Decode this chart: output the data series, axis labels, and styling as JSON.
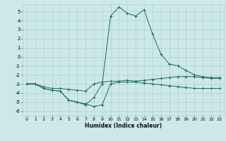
{
  "xlabel": "Humidex (Indice chaleur)",
  "bg_color": "#cce8e8",
  "grid_color": "#aacccc",
  "line_color": "#1a6b5a",
  "xlim": [
    -0.5,
    23.5
  ],
  "ylim": [
    -6.5,
    5.8
  ],
  "xticks": [
    0,
    1,
    2,
    3,
    4,
    5,
    6,
    7,
    8,
    9,
    10,
    11,
    12,
    13,
    14,
    15,
    16,
    17,
    18,
    19,
    20,
    21,
    22,
    23
  ],
  "yticks": [
    -6,
    -5,
    -4,
    -3,
    -2,
    -1,
    0,
    1,
    2,
    3,
    4,
    5
  ],
  "lines": [
    {
      "x": [
        0,
        1,
        2,
        3,
        4,
        5,
        6,
        7,
        8,
        9,
        10,
        11,
        12,
        13,
        14,
        15,
        16,
        17,
        18,
        19,
        20,
        21,
        22,
        23
      ],
      "y": [
        -3.0,
        -3.0,
        -3.3,
        -3.5,
        -3.5,
        -3.6,
        -3.7,
        -3.8,
        -3.0,
        -2.8,
        -2.7,
        -2.7,
        -2.6,
        -2.7,
        -2.6,
        -2.5,
        -2.4,
        -2.3,
        -2.2,
        -2.2,
        -2.2,
        -2.3,
        -2.4,
        -2.4
      ]
    },
    {
      "x": [
        0,
        1,
        2,
        3,
        4,
        5,
        6,
        7,
        8,
        9,
        10,
        11,
        12,
        13,
        14,
        15,
        16,
        17,
        18,
        19,
        20,
        21,
        22,
        23
      ],
      "y": [
        -3.0,
        -3.0,
        -3.5,
        -3.7,
        -3.8,
        -4.8,
        -5.0,
        -5.2,
        -5.5,
        -5.3,
        -3.0,
        -2.8,
        -2.8,
        -2.8,
        -2.9,
        -3.0,
        -3.1,
        -3.2,
        -3.3,
        -3.4,
        -3.5,
        -3.5,
        -3.5,
        -3.5
      ]
    },
    {
      "x": [
        0,
        1,
        2,
        3,
        4,
        5,
        6,
        7,
        8,
        9,
        10,
        11,
        12,
        13,
        14,
        15,
        16,
        17,
        18,
        19,
        20,
        21,
        22,
        23
      ],
      "y": [
        -3.0,
        -3.0,
        -3.5,
        -3.7,
        -3.8,
        -4.8,
        -5.0,
        -5.3,
        -4.5,
        -3.0,
        4.5,
        5.5,
        4.8,
        4.5,
        5.2,
        2.5,
        0.3,
        -0.8,
        -1.0,
        -1.5,
        -2.0,
        -2.2,
        -2.3,
        -2.3
      ]
    }
  ]
}
